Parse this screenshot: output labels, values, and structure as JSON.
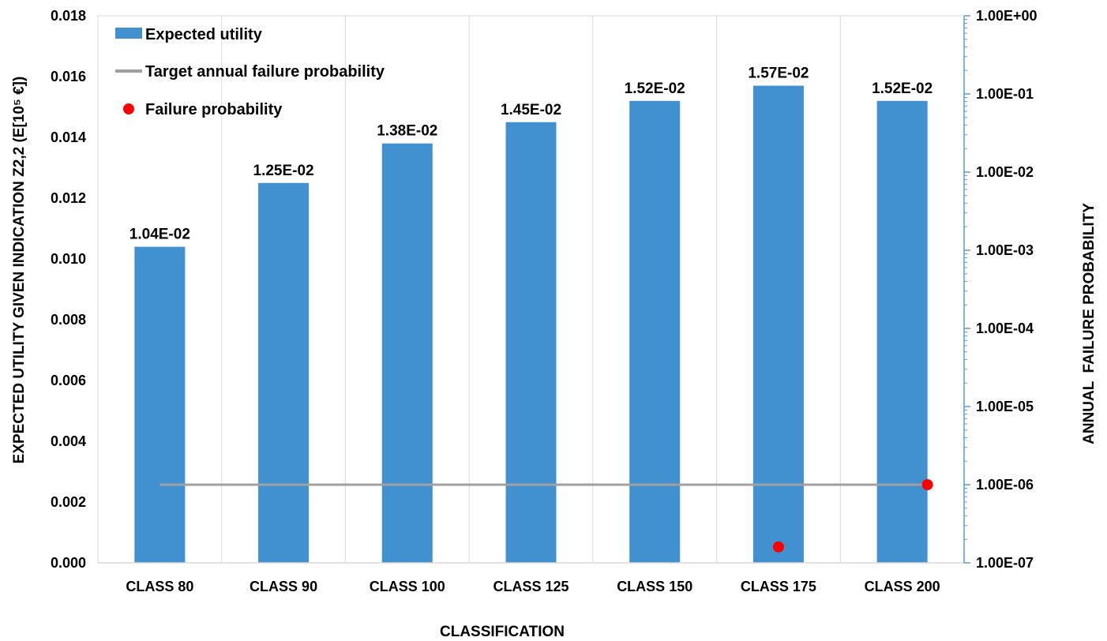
{
  "chart_data": {
    "type": "bar",
    "xlabel": "CLASSIFICATION",
    "ylabel": "EXPECTED UTILITY GIVEN INDICATION Z2,2 (E[10⁵ €])",
    "y2label": "ANNUAL  FAILURE PROBABILITY",
    "categories": [
      "CLASS 80",
      "CLASS 90",
      "CLASS 100",
      "CLASS 125",
      "CLASS 150",
      "CLASS 175",
      "CLASS 200"
    ],
    "ylim": [
      0,
      0.018
    ],
    "yticks": [
      "0.000",
      "0.002",
      "0.004",
      "0.006",
      "0.008",
      "0.010",
      "0.012",
      "0.014",
      "0.016",
      "0.018"
    ],
    "y2scale": "log",
    "y2lim": [
      1e-07,
      1
    ],
    "y2ticks": [
      "1.00E-07",
      "1.00E-06",
      "1.00E-05",
      "1.00E-04",
      "1.00E-03",
      "1.00E-02",
      "1.00E-01",
      "1.00E+00"
    ],
    "grid": "vertical",
    "legend_position": "top-left",
    "series": [
      {
        "name": "Expected utility",
        "kind": "bar",
        "axis": "left",
        "color": "#4190d0",
        "values": [
          0.0104,
          0.0125,
          0.0138,
          0.0145,
          0.0152,
          0.0157,
          0.0152
        ],
        "labels": [
          "1.04E-02",
          "1.25E-02",
          "1.38E-02",
          "1.45E-02",
          "1.52E-02",
          "1.57E-02",
          "1.52E-02"
        ]
      },
      {
        "name": "Target annual failure probability",
        "kind": "line",
        "axis": "right",
        "color": "#a0a0a0",
        "x_start": "CLASS 80",
        "x_end": "CLASS 200",
        "value": 1e-06
      },
      {
        "name": "Failure probability",
        "kind": "scatter",
        "axis": "right",
        "color": "#ff0000",
        "points": [
          {
            "x": "CLASS 175",
            "y": 1.6e-07
          },
          {
            "x": "CLASS 200",
            "y": 1e-06
          }
        ]
      }
    ]
  }
}
